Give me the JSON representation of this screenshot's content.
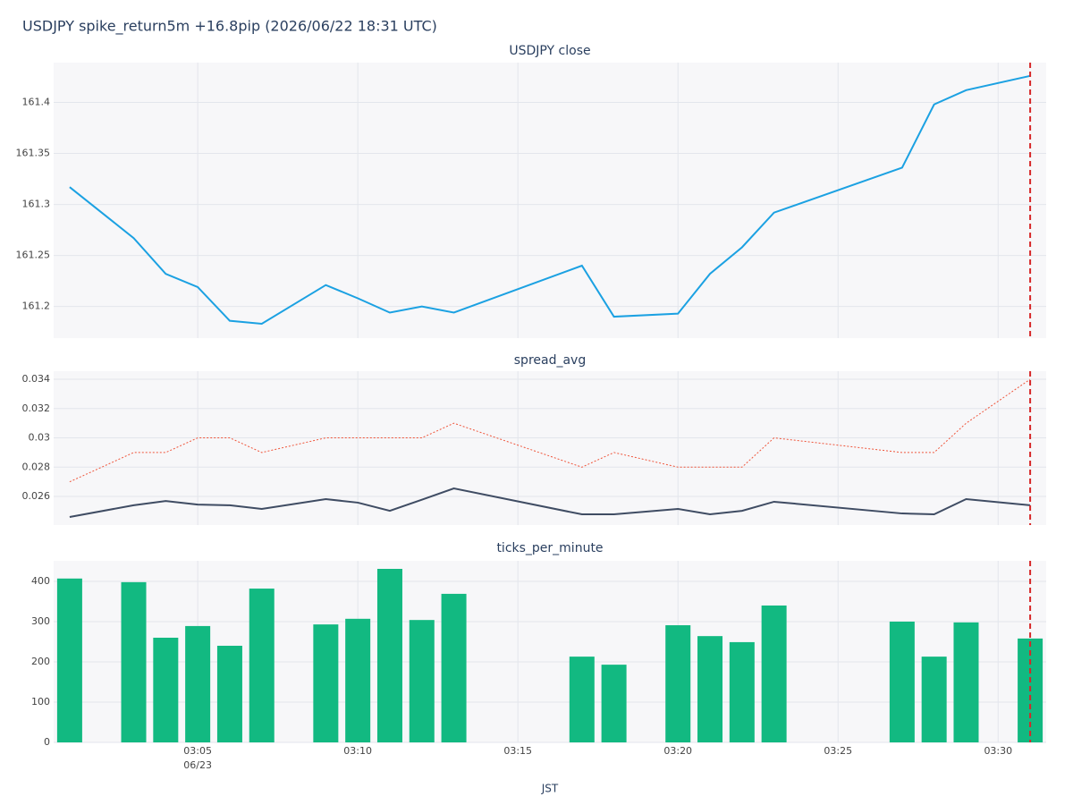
{
  "title": "USDJPY spike_return5m +16.8pip (2026/06/22 18:31 UTC)",
  "x_axis": {
    "label": "JST",
    "xlim": [
      "03:00:30",
      "03:31:30"
    ],
    "xticks": [
      "03:05",
      "03:10",
      "03:15",
      "03:20",
      "03:25",
      "03:30"
    ],
    "date_label": "06/23",
    "event_x": "03:31",
    "event_color": "#d62728"
  },
  "chart_data": [
    {
      "type": "line",
      "title": "USDJPY close",
      "x": [
        "03:01",
        "03:03",
        "03:04",
        "03:05",
        "03:06",
        "03:07",
        "03:09",
        "03:10",
        "03:11",
        "03:12",
        "03:13",
        "03:17",
        "03:18",
        "03:20",
        "03:21",
        "03:22",
        "03:23",
        "03:27",
        "03:28",
        "03:29",
        "03:31"
      ],
      "series": [
        {
          "color": "#1ba1e2",
          "dash": "solid",
          "values": [
            161.317,
            161.267,
            161.232,
            161.219,
            161.186,
            161.183,
            161.221,
            161.208,
            161.194,
            161.2,
            161.194,
            161.24,
            161.19,
            161.193,
            161.232,
            161.258,
            161.292,
            161.336,
            161.398,
            161.412,
            161.426
          ]
        }
      ],
      "ylim": [
        161.169,
        161.439
      ],
      "yticks": [
        161.2,
        161.25,
        161.3,
        161.35,
        161.4
      ],
      "grid": true
    },
    {
      "type": "line",
      "title": "spread_avg",
      "x": [
        "03:01",
        "03:03",
        "03:04",
        "03:05",
        "03:06",
        "03:07",
        "03:09",
        "03:10",
        "03:11",
        "03:12",
        "03:13",
        "03:17",
        "03:18",
        "03:20",
        "03:21",
        "03:22",
        "03:23",
        "03:27",
        "03:28",
        "03:29",
        "03:31"
      ],
      "series": [
        {
          "color": "#ef553b",
          "dash": "dotted",
          "values": [
            0.027,
            0.029,
            0.029,
            0.03,
            0.03,
            0.029,
            0.03,
            0.03,
            0.03,
            0.03,
            0.031,
            0.028,
            0.029,
            0.028,
            0.028,
            0.028,
            0.03,
            0.029,
            0.029,
            0.031,
            0.034
          ]
        },
        {
          "color": "#3f4c63",
          "dash": "solid",
          "values": [
            0.0246,
            0.0254,
            0.02569,
            0.02545,
            0.0254,
            0.02515,
            0.02582,
            0.02558,
            0.02502,
            0.02578,
            0.02655,
            0.02478,
            0.02478,
            0.02515,
            0.02478,
            0.02502,
            0.02564,
            0.02484,
            0.02478,
            0.02582,
            0.0254
          ]
        }
      ],
      "ylim": [
        0.02405,
        0.03455
      ],
      "yticks": [
        0.026,
        0.028,
        0.03,
        0.032,
        0.034
      ],
      "grid": true
    },
    {
      "type": "bar",
      "title": "ticks_per_minute",
      "x": [
        "03:01",
        "03:03",
        "03:04",
        "03:05",
        "03:06",
        "03:07",
        "03:09",
        "03:10",
        "03:11",
        "03:12",
        "03:13",
        "03:17",
        "03:18",
        "03:20",
        "03:21",
        "03:22",
        "03:23",
        "03:27",
        "03:28",
        "03:29",
        "03:31"
      ],
      "values": [
        407,
        398,
        260,
        289,
        240,
        382,
        293,
        307,
        431,
        304,
        369,
        213,
        193,
        291,
        264,
        249,
        340,
        300,
        213,
        298,
        258
      ],
      "color": "#12b981",
      "ylim": [
        0,
        451
      ],
      "yticks": [
        0,
        100,
        200,
        300,
        400
      ],
      "grid": true
    }
  ]
}
